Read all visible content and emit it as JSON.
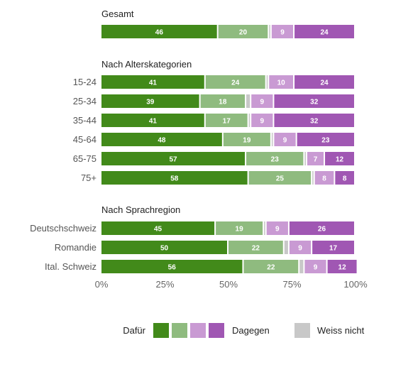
{
  "chart_data": {
    "type": "bar",
    "orientation": "horizontal",
    "stacked": true,
    "xlim": [
      0,
      100
    ],
    "xticks": [
      "0%",
      "25%",
      "50%",
      "75%",
      "100%"
    ],
    "segments": [
      {
        "key": "dafuer",
        "color": "#428a1a",
        "text_color": "#ffffff"
      },
      {
        "key": "eher_dafuer",
        "color": "#8fbb7f",
        "text_color": "#ffffff"
      },
      {
        "key": "weiss_nicht",
        "color": "#c8c8c8",
        "text_color": "#ffffff"
      },
      {
        "key": "eher_dagegen",
        "color": "#c99ad3",
        "text_color": "#ffffff"
      },
      {
        "key": "dagegen",
        "color": "#a057b3",
        "text_color": "#ffffff"
      }
    ],
    "groups": [
      {
        "title": "Gesamt",
        "rows": [
          {
            "label": "",
            "values": [
              46,
              20,
              1,
              9,
              24
            ]
          }
        ]
      },
      {
        "title": "Nach Alterskategorien",
        "rows": [
          {
            "label": "15-24",
            "values": [
              41,
              24,
              1,
              10,
              24
            ]
          },
          {
            "label": "25-34",
            "values": [
              39,
              18,
              2,
              9,
              32
            ]
          },
          {
            "label": "35-44",
            "values": [
              41,
              17,
              1,
              9,
              32
            ]
          },
          {
            "label": "45-64",
            "values": [
              48,
              19,
              1,
              9,
              23
            ]
          },
          {
            "label": "65-75",
            "values": [
              57,
              23,
              1,
              7,
              12
            ]
          },
          {
            "label": "75+",
            "values": [
              58,
              25,
              1,
              8,
              8
            ]
          }
        ]
      },
      {
        "title": "Nach Sprachregion",
        "rows": [
          {
            "label": "Deutschschweiz",
            "values": [
              45,
              19,
              1,
              9,
              26
            ]
          },
          {
            "label": "Romandie",
            "values": [
              50,
              22,
              2,
              9,
              17
            ]
          },
          {
            "label": "Ital. Schweiz",
            "values": [
              56,
              22,
              2,
              9,
              12
            ]
          }
        ]
      }
    ],
    "legend": {
      "position": "bottom",
      "label_left": "Dafür",
      "label_right": "Dagegen",
      "label_unknown": "Weiss nicht",
      "scale_colors": [
        "#428a1a",
        "#8fbb7f",
        "#c99ad3",
        "#a057b3"
      ],
      "unknown_color": "#c8c8c8"
    }
  }
}
